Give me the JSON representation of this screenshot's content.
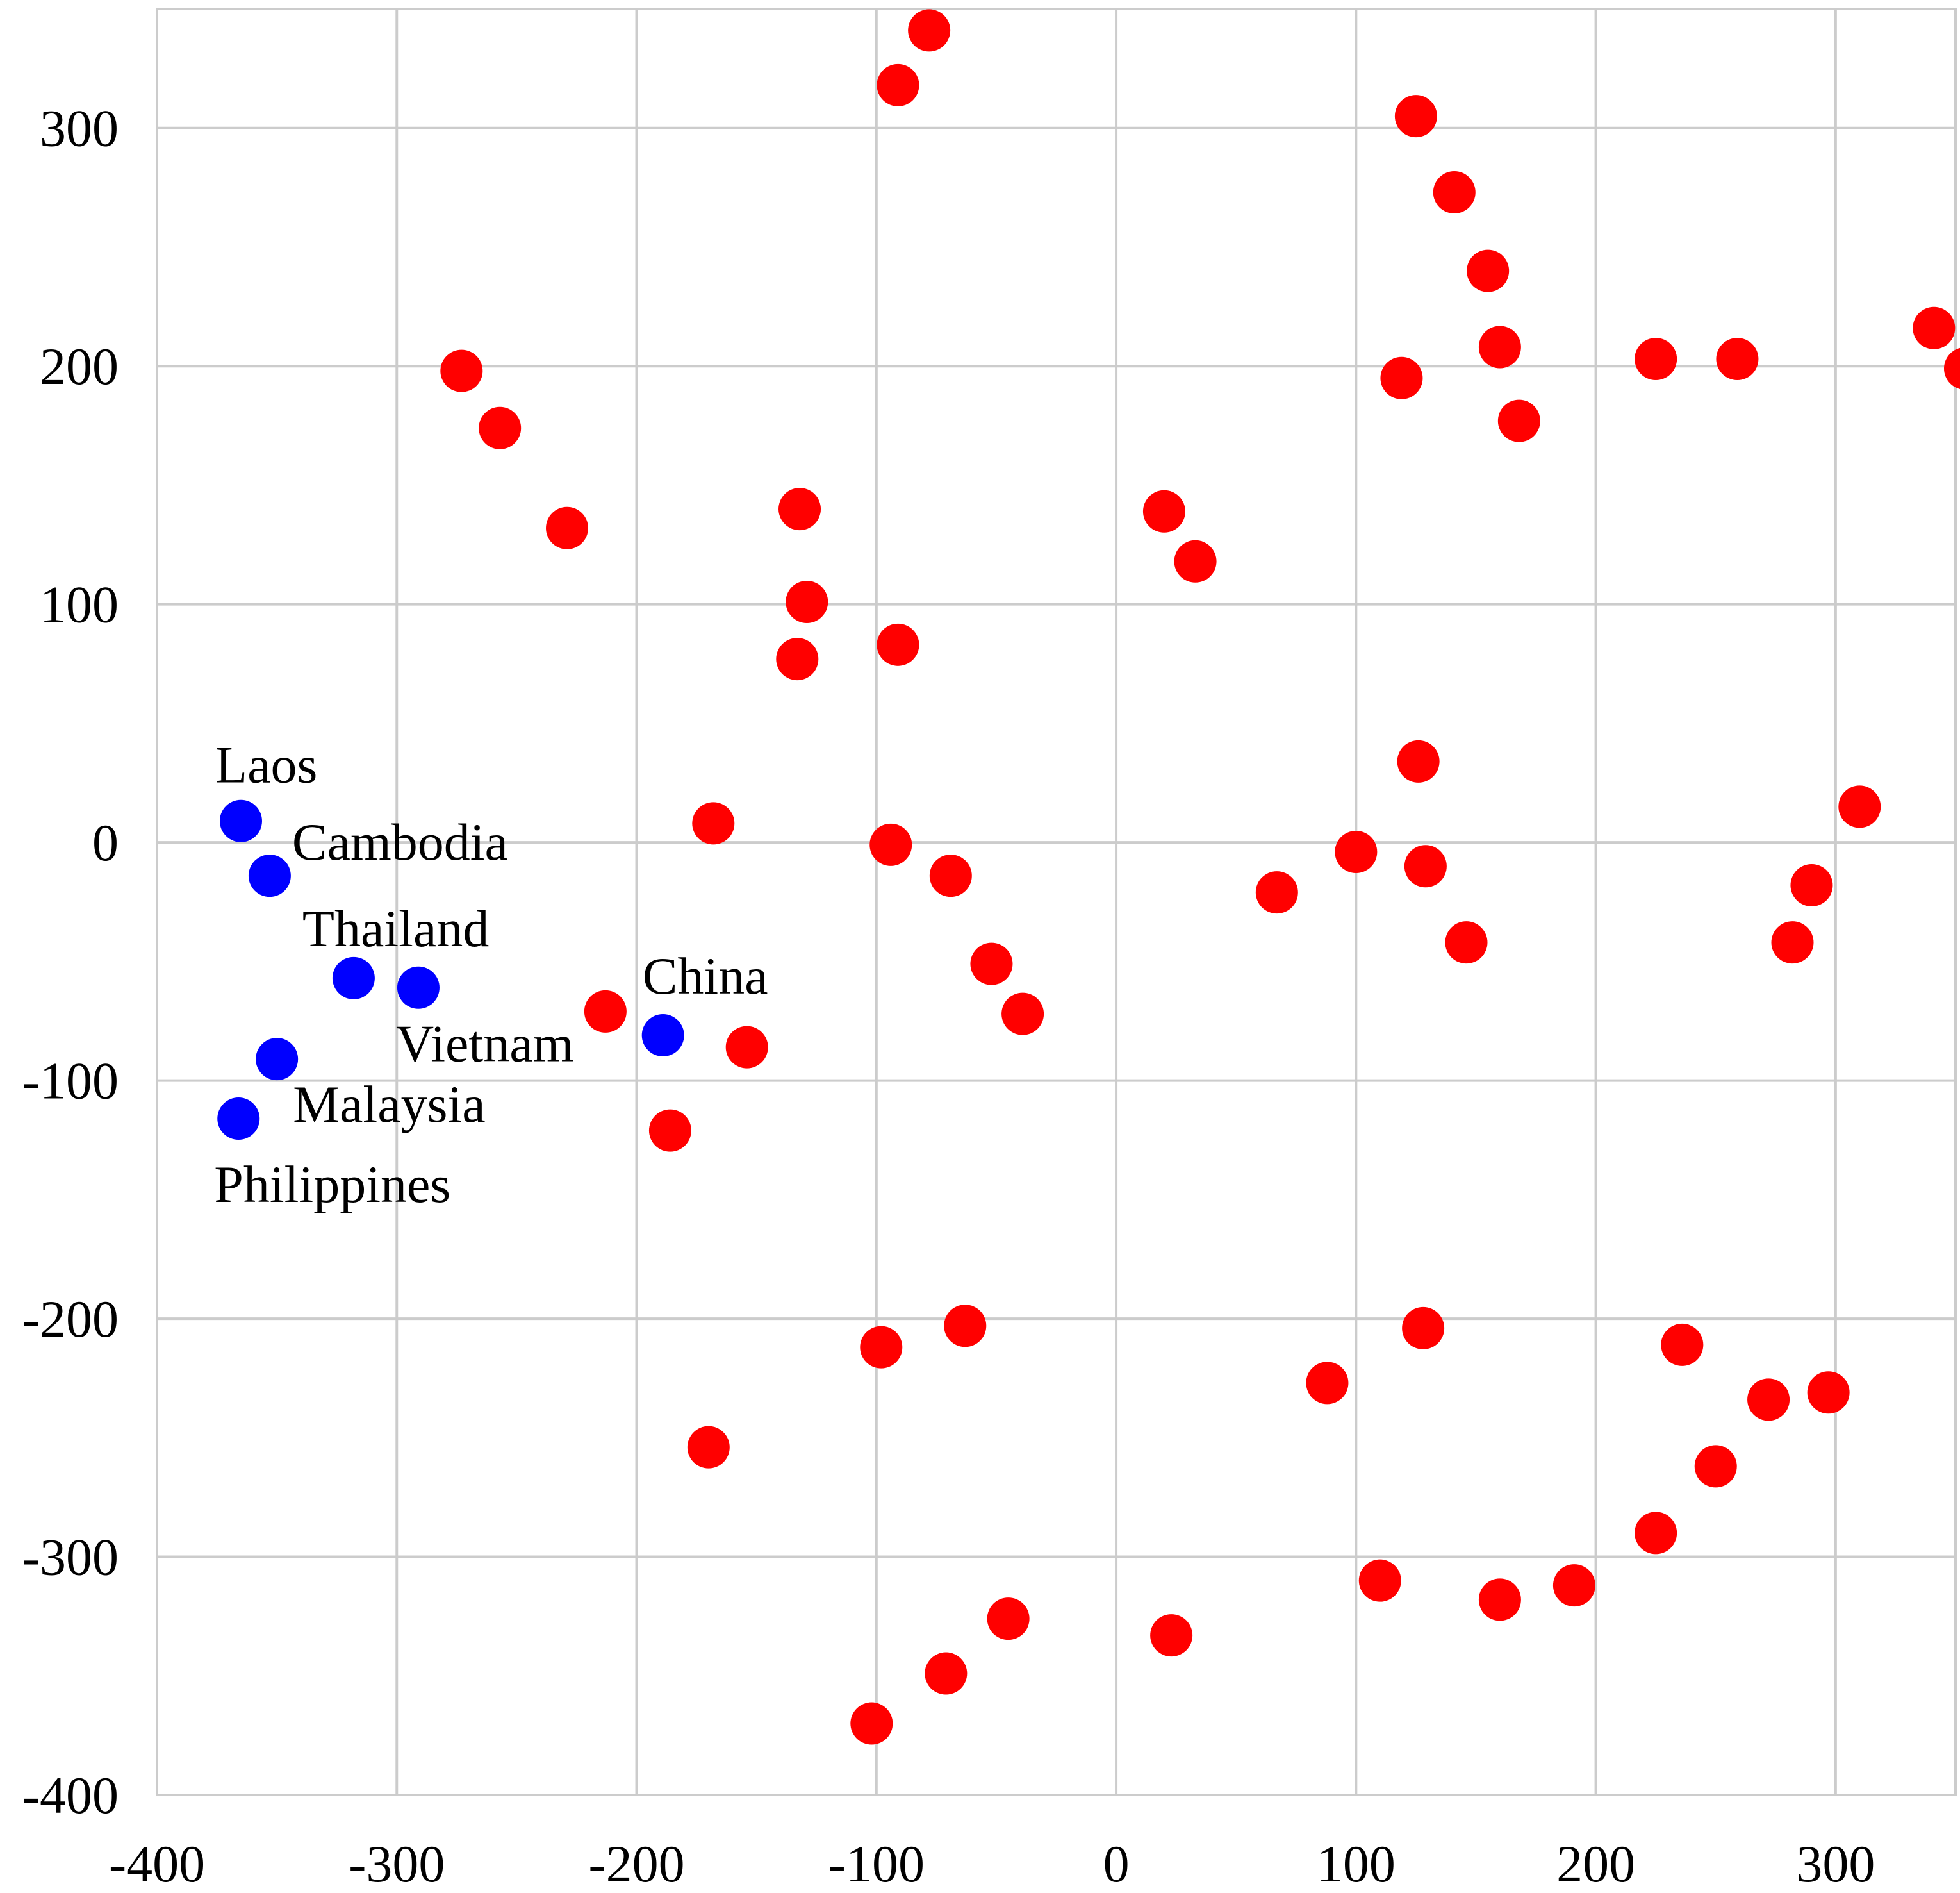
{
  "chart_data": {
    "type": "scatter",
    "title": "",
    "xlabel": "",
    "ylabel": "",
    "xlim": [
      -400,
      350
    ],
    "ylim": [
      -400,
      350
    ],
    "grid": true,
    "x_ticks": [
      -400,
      -300,
      -200,
      -100,
      0,
      100,
      200,
      300
    ],
    "y_ticks": [
      -400,
      -300,
      -200,
      -100,
      0,
      100,
      200,
      300
    ],
    "x_tick_labels": [
      "-400",
      "-300",
      "-200",
      "-100",
      "0",
      "100",
      "200",
      "300"
    ],
    "y_tick_labels": [
      "-400",
      "-300",
      "-200",
      "-100",
      "0",
      "100",
      "200",
      "300"
    ],
    "colors": {
      "highlighted": "#0000ff",
      "other": "#ff0000",
      "grid": "#cccccc"
    },
    "series": [
      {
        "points": [
          {
            "x": -365,
            "y": 9,
            "label": "Laos"
          },
          {
            "x": -353,
            "y": -14,
            "label": "Cambodia"
          },
          {
            "x": -318,
            "y": -57,
            "label": "Thailand"
          },
          {
            "x": -291,
            "y": -61,
            "label": "Vietnam"
          },
          {
            "x": -350,
            "y": -91,
            "label": "Malaysia"
          },
          {
            "x": -366,
            "y": -116,
            "label": "Philippines"
          },
          {
            "x": -189,
            "y": -81,
            "label": "China"
          }
        ]
      },
      {
        "points": [
          {
            "x": -78,
            "y": 341
          },
          {
            "x": -91,
            "y": 318
          },
          {
            "x": -273,
            "y": 198
          },
          {
            "x": -257,
            "y": 174
          },
          {
            "x": -229,
            "y": 132
          },
          {
            "x": -132,
            "y": 140
          },
          {
            "x": -129,
            "y": 101
          },
          {
            "x": -133,
            "y": 77
          },
          {
            "x": -91,
            "y": 83
          },
          {
            "x": 20,
            "y": 139
          },
          {
            "x": 33,
            "y": 118
          },
          {
            "x": 125,
            "y": 305
          },
          {
            "x": 141,
            "y": 273
          },
          {
            "x": 155,
            "y": 240
          },
          {
            "x": 160,
            "y": 208
          },
          {
            "x": 119,
            "y": 195
          },
          {
            "x": 168,
            "y": 177
          },
          {
            "x": 225,
            "y": 203
          },
          {
            "x": 259,
            "y": 203
          },
          {
            "x": 341,
            "y": 216
          },
          {
            "x": 354,
            "y": 199
          },
          {
            "x": 126,
            "y": 34
          },
          {
            "x": 310,
            "y": 15
          },
          {
            "x": 100,
            "y": -4
          },
          {
            "x": 129,
            "y": -10
          },
          {
            "x": 67,
            "y": -21
          },
          {
            "x": 146,
            "y": -42
          },
          {
            "x": 290,
            "y": -18
          },
          {
            "x": 282,
            "y": -42
          },
          {
            "x": -168,
            "y": 8
          },
          {
            "x": -94,
            "y": -1
          },
          {
            "x": -69,
            "y": -14
          },
          {
            "x": -52,
            "y": -51
          },
          {
            "x": -39,
            "y": -72
          },
          {
            "x": -213,
            "y": -71
          },
          {
            "x": -154,
            "y": -86
          },
          {
            "x": -186,
            "y": -121
          },
          {
            "x": -98,
            "y": -212
          },
          {
            "x": -63,
            "y": -203
          },
          {
            "x": -170,
            "y": -254
          },
          {
            "x": 88,
            "y": -227
          },
          {
            "x": 128,
            "y": -204
          },
          {
            "x": 236,
            "y": -211
          },
          {
            "x": 272,
            "y": -234
          },
          {
            "x": 297,
            "y": -231
          },
          {
            "x": 250,
            "y": -262
          },
          {
            "x": 225,
            "y": -290
          },
          {
            "x": 110,
            "y": -310
          },
          {
            "x": 160,
            "y": -318
          },
          {
            "x": 191,
            "y": -312
          },
          {
            "x": -45,
            "y": -326
          },
          {
            "x": 23,
            "y": -333
          },
          {
            "x": -71,
            "y": -349
          },
          {
            "x": -102,
            "y": -370
          }
        ]
      }
    ]
  }
}
